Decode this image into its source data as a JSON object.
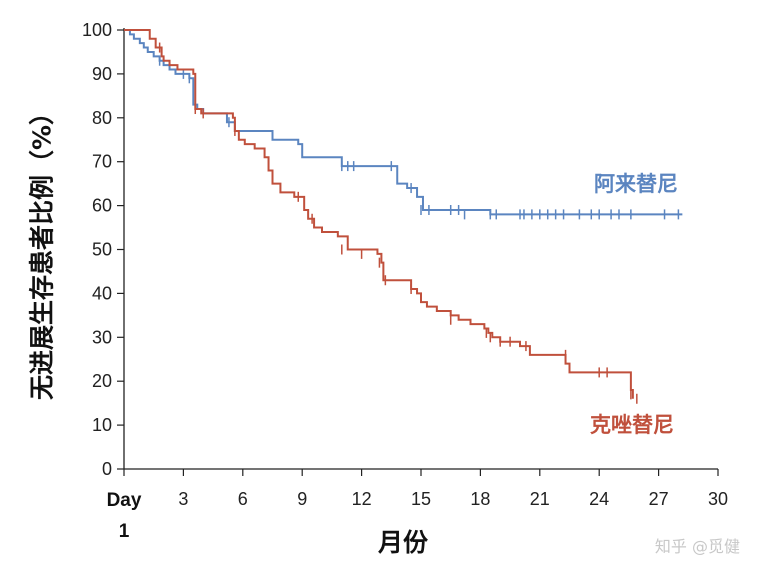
{
  "chart_data": {
    "type": "line",
    "xlabel": "月份",
    "ylabel": "无进展生存患者比例（%）",
    "xlim": [
      0,
      30
    ],
    "ylim": [
      0,
      100
    ],
    "x_ticks": [
      3,
      6,
      9,
      12,
      15,
      18,
      21,
      24,
      27,
      30
    ],
    "x_tick_labels": [
      "3",
      "6",
      "9",
      "12",
      "15",
      "18",
      "21",
      "24",
      "27",
      "30"
    ],
    "x_first_tick_label": [
      "Day",
      "1"
    ],
    "y_ticks": [
      0,
      10,
      20,
      30,
      40,
      50,
      60,
      70,
      80,
      90,
      100
    ],
    "y_tick_labels": [
      "0",
      "10",
      "20",
      "30",
      "40",
      "50",
      "60",
      "70",
      "80",
      "90",
      "100"
    ],
    "grid": false,
    "step": true,
    "series": [
      {
        "name": "阿来替尼",
        "color": "#5b85c0",
        "x": [
          0,
          0.3,
          0.5,
          0.8,
          1.0,
          1.2,
          1.5,
          1.8,
          2.0,
          2.3,
          2.6,
          3.0,
          3.3,
          3.5,
          3.7,
          4.0,
          4.5,
          5.2,
          5.6,
          6.2,
          7.5,
          8.8,
          9.0,
          10.5,
          11.0,
          12.8,
          13.8,
          14.3,
          14.8,
          15.1,
          18.5,
          28.2
        ],
        "y": [
          100,
          99,
          98,
          97,
          96,
          95,
          94,
          93,
          92,
          91,
          90,
          90,
          89,
          83,
          82,
          81,
          81,
          79,
          77,
          77,
          75,
          74,
          71,
          71,
          69,
          69,
          65,
          64,
          62,
          59,
          58,
          58
        ],
        "censor_x": [
          1.8,
          3.0,
          3.3,
          5.3,
          11.0,
          11.3,
          11.6,
          13.5,
          14.5,
          15.0,
          15.4,
          16.5,
          16.9,
          17.2,
          18.5,
          18.8,
          20.0,
          20.2,
          20.6,
          21.0,
          21.4,
          21.8,
          22.2,
          23.0,
          23.6,
          24.0,
          24.6,
          25.0,
          25.6,
          27.3,
          28.0
        ],
        "censor_y": [
          93,
          90,
          89,
          79,
          69,
          69,
          69,
          69,
          64,
          59,
          59,
          59,
          59,
          58,
          58,
          58,
          58,
          58,
          58,
          58,
          58,
          58,
          58,
          58,
          58,
          58,
          58,
          58,
          58,
          58,
          58
        ]
      },
      {
        "name": "克唑替尼",
        "color": "#c0503c",
        "x": [
          0,
          1.3,
          1.6,
          1.9,
          2.0,
          2.3,
          2.7,
          3.5,
          3.6,
          3.9,
          5.5,
          5.6,
          5.8,
          6.1,
          6.6,
          7.1,
          7.3,
          7.5,
          7.9,
          8.6,
          9.1,
          9.3,
          9.6,
          10.0,
          10.8,
          11.3,
          12.8,
          13.0,
          13.1,
          14.5,
          14.8,
          15.0,
          15.3,
          15.8,
          16.5,
          16.9,
          17.5,
          18.2,
          18.4,
          18.6,
          19.0,
          20.0,
          20.5,
          22.3,
          22.5,
          25.6,
          25.7
        ],
        "y": [
          100,
          98,
          96,
          94,
          93,
          92,
          91,
          90,
          82,
          81,
          80,
          77,
          75,
          74,
          73,
          71,
          68,
          65,
          63,
          62,
          59,
          57,
          55,
          54,
          53,
          50,
          49,
          47,
          43,
          41,
          40,
          38,
          37,
          36,
          35,
          34,
          33,
          32,
          31,
          30,
          29,
          28,
          26,
          24,
          22,
          18,
          16
        ],
        "censor_x": [
          1.8,
          3.6,
          4.0,
          5.6,
          8.8,
          9.5,
          11.0,
          12.0,
          12.9,
          13.2,
          14.5,
          16.5,
          18.3,
          18.5,
          19.0,
          19.5,
          20.3,
          22.3,
          24.0,
          24.4,
          25.6,
          25.9
        ],
        "censor_y": [
          96,
          82,
          81,
          77,
          62,
          57,
          50,
          49,
          47,
          43,
          41,
          34,
          31,
          30,
          29,
          29,
          28,
          26,
          22,
          22,
          17,
          16
        ]
      }
    ],
    "annotations": [
      {
        "text": "阿来替尼",
        "series": 0
      },
      {
        "text": "克唑替尼",
        "series": 1
      }
    ]
  },
  "watermark": "知乎 @觅健"
}
